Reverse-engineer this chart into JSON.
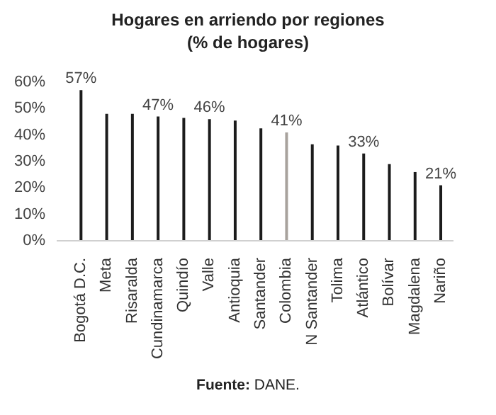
{
  "chart_data": {
    "type": "bar",
    "title": "Hogares en arriendo por regiones",
    "subtitle": "(% de hogares)",
    "categories": [
      "Bogotá D.C.",
      "Meta",
      "Risaralda",
      "Cundinamarca",
      "Quindío",
      "Valle",
      "Antioquia",
      "Santander",
      "Colombia",
      "N Santander",
      "Tolima",
      "Atlántico",
      "Bolívar",
      "Magdalena",
      "Nariño"
    ],
    "values": [
      57,
      48,
      48,
      47,
      46.5,
      46,
      45.5,
      42.5,
      41,
      36.5,
      36,
      33,
      29,
      26,
      21
    ],
    "value_labels": [
      "57%",
      null,
      null,
      "47%",
      null,
      "46%",
      null,
      null,
      "41%",
      null,
      null,
      "33%",
      null,
      null,
      "21%"
    ],
    "colors": [
      "#1c1c1c",
      "#1c1c1c",
      "#1c1c1c",
      "#1c1c1c",
      "#1c1c1c",
      "#1c1c1c",
      "#1c1c1c",
      "#1c1c1c",
      "#a8a29d",
      "#1c1c1c",
      "#1c1c1c",
      "#1c1c1c",
      "#1c1c1c",
      "#1c1c1c",
      "#1c1c1c"
    ],
    "ylim": [
      0,
      60
    ],
    "yticks": [
      {
        "value": 0,
        "label": "0%"
      },
      {
        "value": 10,
        "label": "10%"
      },
      {
        "value": 20,
        "label": "20%"
      },
      {
        "value": 30,
        "label": "30%"
      },
      {
        "value": 40,
        "label": "40%"
      },
      {
        "value": 50,
        "label": "50%"
      },
      {
        "value": 60,
        "label": "60%"
      }
    ],
    "grid": false,
    "legend": false,
    "annotations": [
      "Fuente: DANE."
    ]
  }
}
